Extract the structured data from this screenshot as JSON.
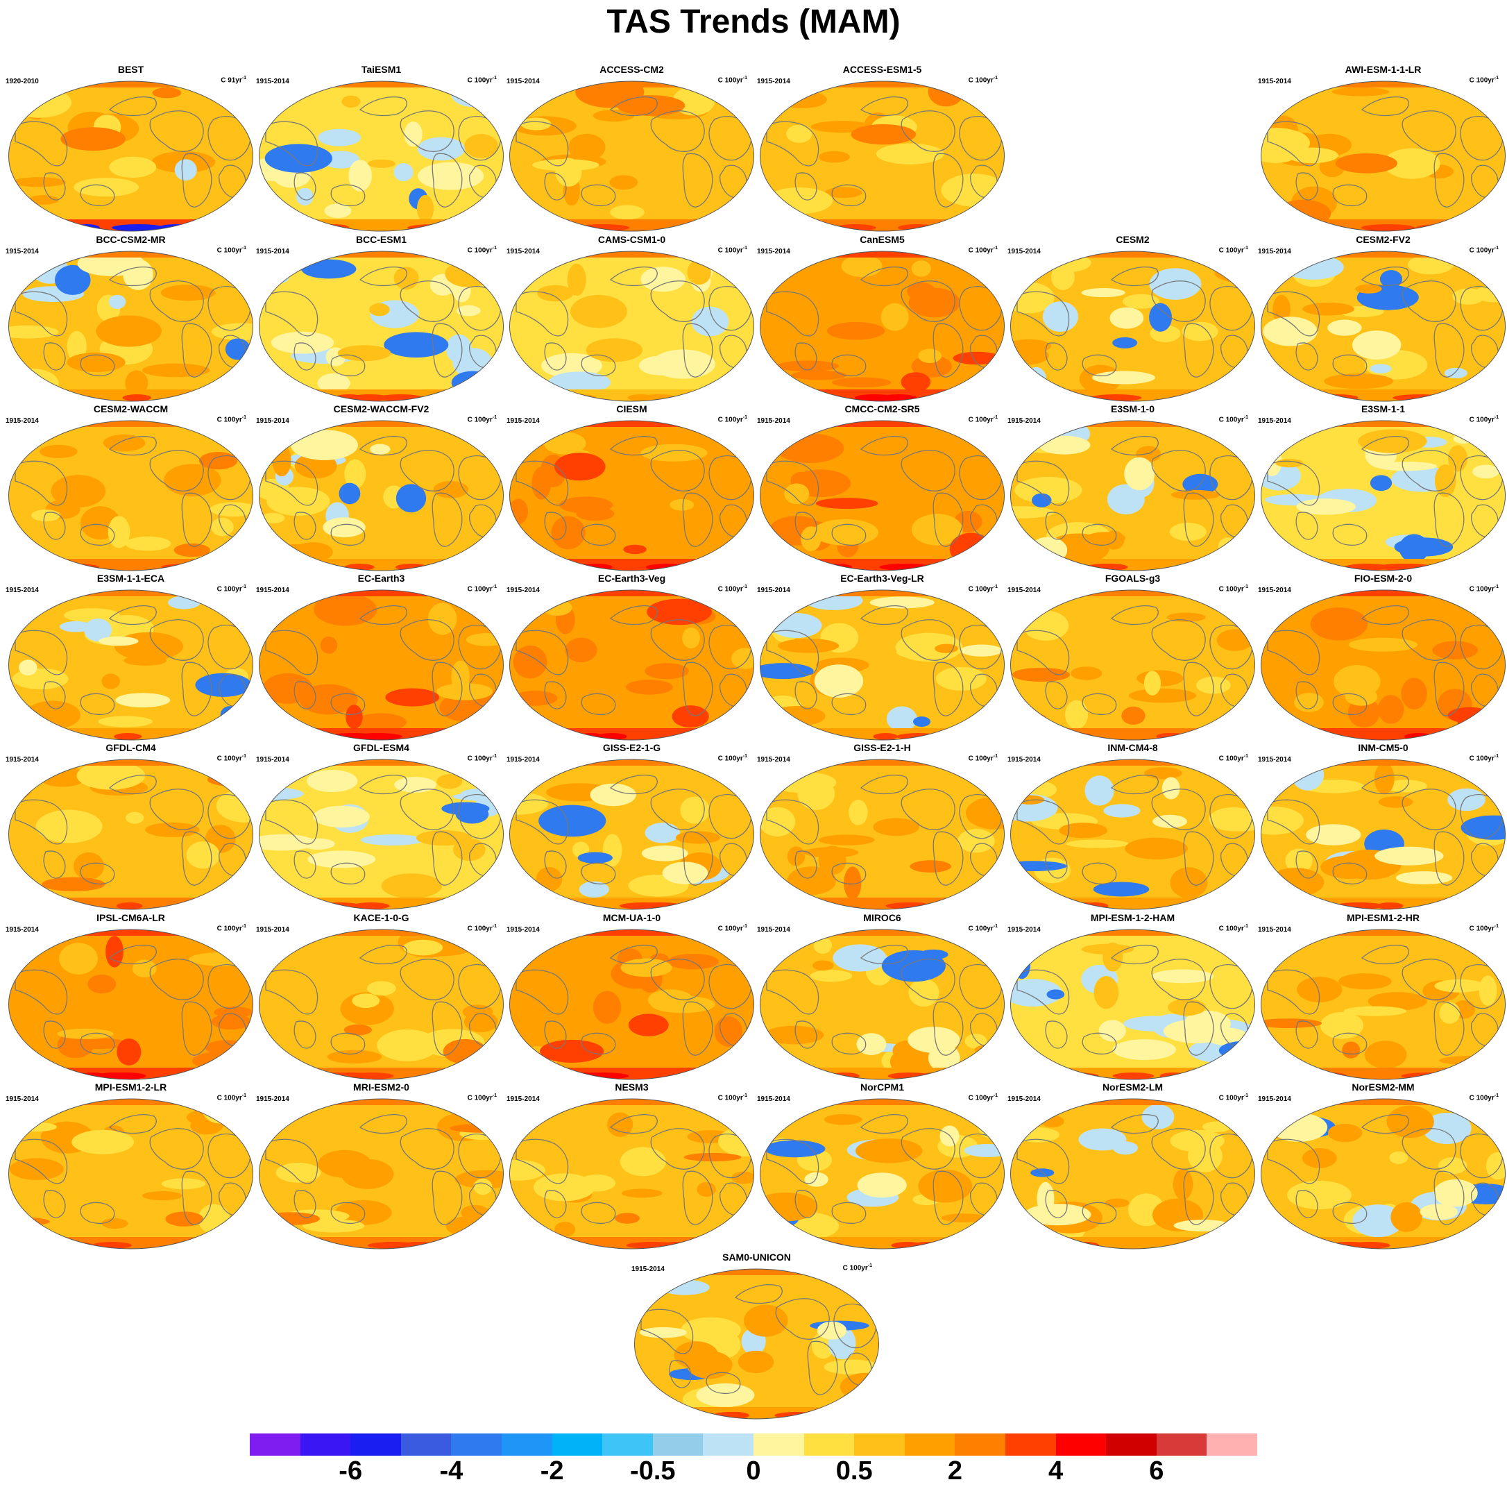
{
  "title": "TAS Trends (MAM)",
  "chart_data": {
    "type": "heatmap",
    "title": "TAS Trends (MAM)",
    "projection": "global map panels",
    "panels": [
      {
        "name": "BEST",
        "period": "1920-2010",
        "units": "C 91yr",
        "units_sup": "-1",
        "style": "obs"
      },
      {
        "name": "TaiESM1",
        "period": "1915-2014",
        "units": "C 100yr",
        "units_sup": "-1",
        "style": "cool"
      },
      {
        "name": "ACCESS-CM2",
        "period": "1915-2014",
        "units": "C 100yr",
        "units_sup": "-1",
        "style": "warm"
      },
      {
        "name": "ACCESS-ESM1-5",
        "period": "1915-2014",
        "units": "C 100yr",
        "units_sup": "-1",
        "style": "warm"
      },
      {
        "name": "AWI-ESM-1-1-LR",
        "period": "1915-2014",
        "units": "C 100yr",
        "units_sup": "-1",
        "style": "warm"
      },
      {
        "name": "BCC-CSM2-MR",
        "period": "1915-2014",
        "units": "C 100yr",
        "units_sup": "-1",
        "style": "mixed"
      },
      {
        "name": "BCC-ESM1",
        "period": "1915-2014",
        "units": "C 100yr",
        "units_sup": "-1",
        "style": "cool"
      },
      {
        "name": "CAMS-CSM1-0",
        "period": "1915-2014",
        "units": "C 100yr",
        "units_sup": "-1",
        "style": "pale"
      },
      {
        "name": "CanESM5",
        "period": "1915-2014",
        "units": "C 100yr",
        "units_sup": "-1",
        "style": "hot"
      },
      {
        "name": "CESM2",
        "period": "1915-2014",
        "units": "C 100yr",
        "units_sup": "-1",
        "style": "mixed"
      },
      {
        "name": "CESM2-FV2",
        "period": "1915-2014",
        "units": "C 100yr",
        "units_sup": "-1",
        "style": "mixed"
      },
      {
        "name": "CESM2-WACCM",
        "period": "1915-2014",
        "units": "C 100yr",
        "units_sup": "-1",
        "style": "warm"
      },
      {
        "name": "CESM2-WACCM-FV2",
        "period": "1915-2014",
        "units": "C 100yr",
        "units_sup": "-1",
        "style": "mixed"
      },
      {
        "name": "CIESM",
        "period": "1915-2014",
        "units": "C 100yr",
        "units_sup": "-1",
        "style": "hot"
      },
      {
        "name": "CMCC-CM2-SR5",
        "period": "1915-2014",
        "units": "C 100yr",
        "units_sup": "-1",
        "style": "hot"
      },
      {
        "name": "E3SM-1-0",
        "period": "1915-2014",
        "units": "C 100yr",
        "units_sup": "-1",
        "style": "mixed"
      },
      {
        "name": "E3SM-1-1",
        "period": "1915-2014",
        "units": "C 100yr",
        "units_sup": "-1",
        "style": "cool"
      },
      {
        "name": "E3SM-1-1-ECA",
        "period": "1915-2014",
        "units": "C 100yr",
        "units_sup": "-1",
        "style": "mixed"
      },
      {
        "name": "EC-Earth3",
        "period": "1915-2014",
        "units": "C 100yr",
        "units_sup": "-1",
        "style": "hot"
      },
      {
        "name": "EC-Earth3-Veg",
        "period": "1915-2014",
        "units": "C 100yr",
        "units_sup": "-1",
        "style": "hot"
      },
      {
        "name": "EC-Earth3-Veg-LR",
        "period": "1915-2014",
        "units": "C 100yr",
        "units_sup": "-1",
        "style": "mixed"
      },
      {
        "name": "FGOALS-g3",
        "period": "1915-2014",
        "units": "C 100yr",
        "units_sup": "-1",
        "style": "warm"
      },
      {
        "name": "FIO-ESM-2-0",
        "period": "1915-2014",
        "units": "C 100yr",
        "units_sup": "-1",
        "style": "hot"
      },
      {
        "name": "GFDL-CM4",
        "period": "1915-2014",
        "units": "C 100yr",
        "units_sup": "-1",
        "style": "warm"
      },
      {
        "name": "GFDL-ESM4",
        "period": "1915-2014",
        "units": "C 100yr",
        "units_sup": "-1",
        "style": "cool"
      },
      {
        "name": "GISS-E2-1-G",
        "period": "1915-2014",
        "units": "C 100yr",
        "units_sup": "-1",
        "style": "mixed"
      },
      {
        "name": "GISS-E2-1-H",
        "period": "1915-2014",
        "units": "C 100yr",
        "units_sup": "-1",
        "style": "warm"
      },
      {
        "name": "INM-CM4-8",
        "period": "1915-2014",
        "units": "C 100yr",
        "units_sup": "-1",
        "style": "mixed"
      },
      {
        "name": "INM-CM5-0",
        "period": "1915-2014",
        "units": "C 100yr",
        "units_sup": "-1",
        "style": "mixed"
      },
      {
        "name": "IPSL-CM6A-LR",
        "period": "1915-2014",
        "units": "C 100yr",
        "units_sup": "-1",
        "style": "hot"
      },
      {
        "name": "KACE-1-0-G",
        "period": "1915-2014",
        "units": "C 100yr",
        "units_sup": "-1",
        "style": "warm"
      },
      {
        "name": "MCM-UA-1-0",
        "period": "1915-2014",
        "units": "C 100yr",
        "units_sup": "-1",
        "style": "hot"
      },
      {
        "name": "MIROC6",
        "period": "1915-2014",
        "units": "C 100yr",
        "units_sup": "-1",
        "style": "mixed"
      },
      {
        "name": "MPI-ESM-1-2-HAM",
        "period": "1915-2014",
        "units": "C 100yr",
        "units_sup": "-1",
        "style": "cool"
      },
      {
        "name": "MPI-ESM1-2-HR",
        "period": "1915-2014",
        "units": "C 100yr",
        "units_sup": "-1",
        "style": "warm"
      },
      {
        "name": "MPI-ESM1-2-LR",
        "period": "1915-2014",
        "units": "C 100yr",
        "units_sup": "-1",
        "style": "warm"
      },
      {
        "name": "MRI-ESM2-0",
        "period": "1915-2014",
        "units": "C 100yr",
        "units_sup": "-1",
        "style": "warm"
      },
      {
        "name": "NESM3",
        "period": "1915-2014",
        "units": "C 100yr",
        "units_sup": "-1",
        "style": "warm"
      },
      {
        "name": "NorCPM1",
        "period": "1915-2014",
        "units": "C 100yr",
        "units_sup": "-1",
        "style": "mixed"
      },
      {
        "name": "NorESM2-LM",
        "period": "1915-2014",
        "units": "C 100yr",
        "units_sup": "-1",
        "style": "mixed"
      },
      {
        "name": "NorESM2-MM",
        "period": "1915-2014",
        "units": "C 100yr",
        "units_sup": "-1",
        "style": "mixed"
      },
      {
        "name": "SAM0-UNICON",
        "period": "1915-2014",
        "units": "C 100yr",
        "units_sup": "-1",
        "style": "mixed"
      }
    ],
    "colorbar": {
      "colors": [
        "#7f1cf0",
        "#3a16f5",
        "#1a1ef0",
        "#3a5ae0",
        "#2e7aee",
        "#1e96f8",
        "#00b2f8",
        "#3ec4f6",
        "#92cdea",
        "#bde2f6",
        "#fff59e",
        "#ffe040",
        "#ffc018",
        "#ffa000",
        "#ff7f00",
        "#ff4000",
        "#ff0000",
        "#d00000",
        "#d83a3a",
        "#ffb0b0"
      ],
      "tick_labels": [
        "-6",
        "-4",
        "-2",
        "-0.5",
        "0",
        "0.5",
        "2",
        "4",
        "6"
      ]
    }
  },
  "colors": {
    "coastline": "#777777",
    "border": "#555555",
    "background": "#ffffff"
  }
}
